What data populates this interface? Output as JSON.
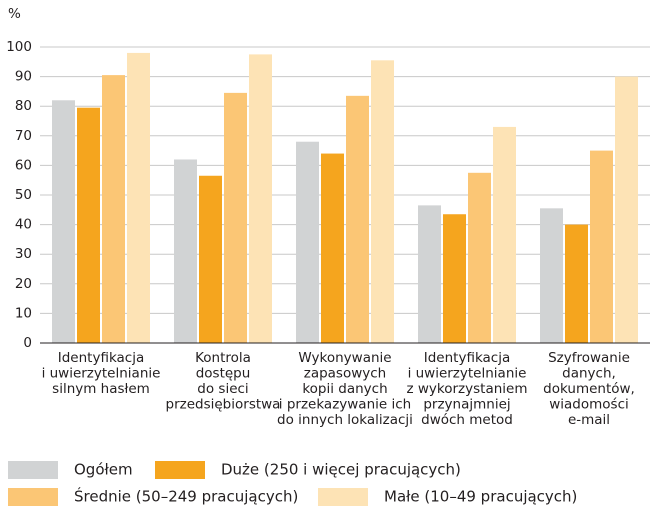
{
  "chart_data": {
    "type": "bar",
    "y_label": "%",
    "categories": [
      [
        "Identyfikacja",
        "i uwierzytelnianie",
        "silnym hasłem"
      ],
      [
        "Kontrola",
        "dostępu",
        "do sieci",
        "przedsiębiorstwa"
      ],
      [
        "Wykonywanie",
        "zapasowych",
        "kopii danych",
        "i przekazywanie ich",
        "do innych lokalizacji"
      ],
      [
        "Identyfikacja",
        "i uwierzytelnianie",
        "z wykorzystaniem",
        "przynajmniej",
        "dwóch metod"
      ],
      [
        "Szyfrowanie",
        "danych,",
        "dokumentów,",
        "wiadomości",
        "e-mail"
      ]
    ],
    "series": [
      {
        "name": "Ogółem",
        "color": "#d1d3d4",
        "values": [
          82,
          62,
          68,
          46.5,
          45.5
        ]
      },
      {
        "name": "Duże (250 i więcej pracujących)",
        "color": "#f5a51e",
        "values": [
          79.5,
          56.5,
          64,
          43.5,
          40
        ]
      },
      {
        "name": "Średnie (50–249 pracujących)",
        "color": "#fbc675",
        "values": [
          90.5,
          84.5,
          83.5,
          57.5,
          65
        ]
      },
      {
        "name": "Małe (10–49 pracujących)",
        "color": "#fde3b5",
        "values": [
          98,
          97.5,
          95.5,
          73,
          90
        ]
      }
    ],
    "ylim": [
      0,
      100
    ],
    "yticks": [
      0,
      10,
      20,
      30,
      40,
      50,
      60,
      70,
      80,
      90,
      100
    ],
    "grid": true
  }
}
